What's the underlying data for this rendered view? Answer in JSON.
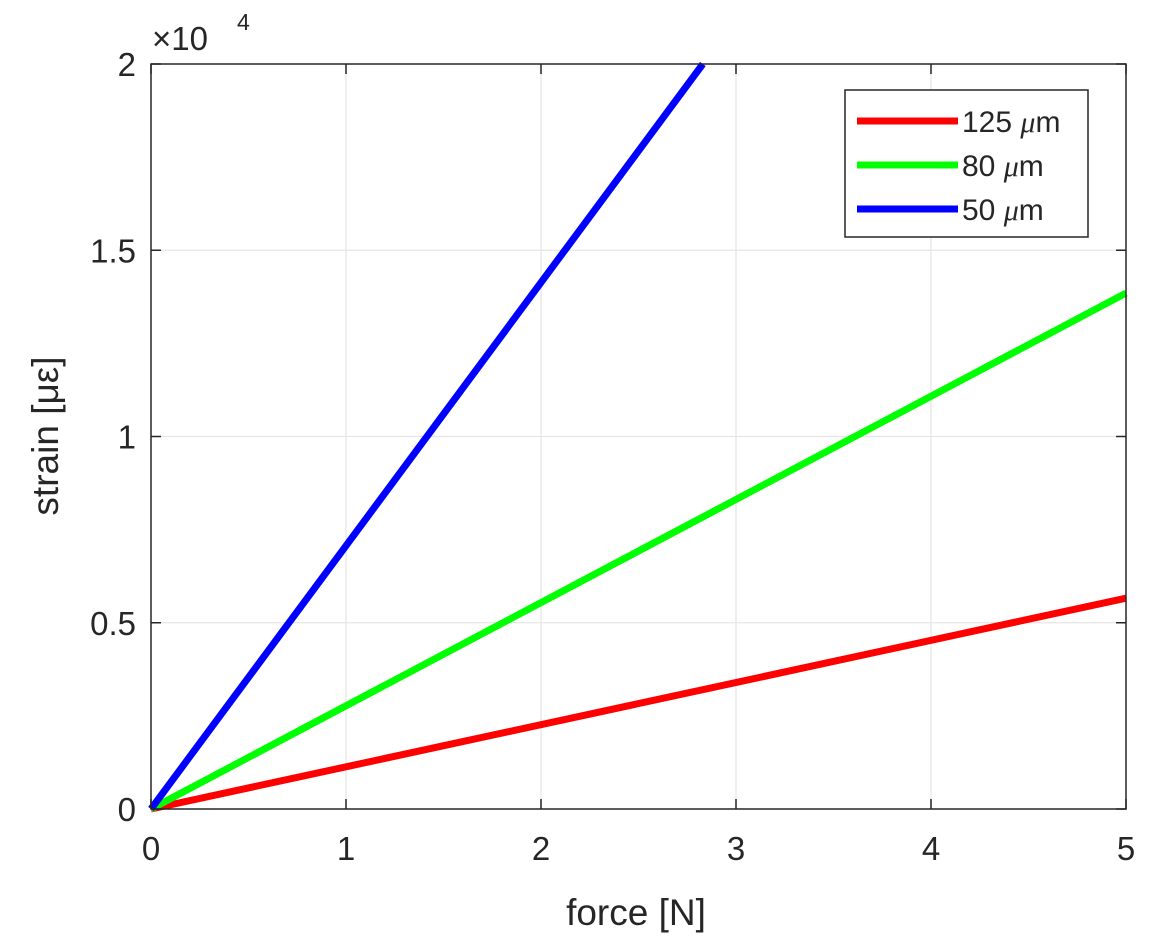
{
  "chart_data": {
    "type": "line",
    "xlabel": "force [N]",
    "ylabel": "strain [με]",
    "xlim": [
      0,
      5
    ],
    "ylim": [
      0,
      20000
    ],
    "xticks": [
      0,
      1,
      2,
      3,
      4,
      5
    ],
    "xtick_labels": [
      "0",
      "1",
      "2",
      "3",
      "4",
      "5"
    ],
    "yticks": [
      0,
      5000,
      10000,
      15000,
      20000
    ],
    "ytick_labels": [
      "0",
      "0.5",
      "1",
      "1.5",
      "2"
    ],
    "y_exponent": {
      "base": "×10",
      "power": "4"
    },
    "grid": true,
    "legend_position": "top-right",
    "series": [
      {
        "name": "125 μm",
        "name_value": "125 ",
        "name_unit": "m",
        "color": "#ff0000",
        "x": [
          0,
          5
        ],
        "y": [
          0,
          5660
        ]
      },
      {
        "name": "80 μm",
        "name_value": "80 ",
        "name_unit": "m",
        "color": "#00ff00",
        "x": [
          0,
          5
        ],
        "y": [
          0,
          13850
        ]
      },
      {
        "name": "50 μm",
        "name_value": "50 ",
        "name_unit": "m",
        "color": "#0000ff",
        "x": [
          0,
          2.83
        ],
        "y": [
          0,
          20000
        ]
      }
    ]
  }
}
